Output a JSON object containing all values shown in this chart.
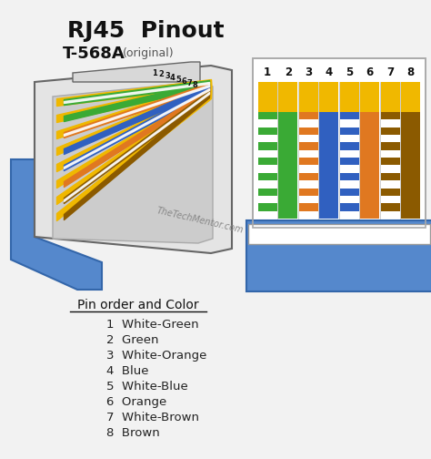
{
  "title": "RJ45  Pinout",
  "subtitle": "T-568A",
  "subtitle2": "(original)",
  "watermark": "TheTechMentor.com",
  "background_color": "#f2f2f2",
  "pin_labels": [
    "1",
    "2",
    "3",
    "4",
    "5",
    "6",
    "7",
    "8"
  ],
  "pin_colors": [
    {
      "name": "White-Green",
      "stripe": true,
      "color": "#3aaa35"
    },
    {
      "name": "Green",
      "stripe": false,
      "color": "#3aaa35"
    },
    {
      "name": "White-Orange",
      "stripe": true,
      "color": "#e07820"
    },
    {
      "name": "Blue",
      "stripe": false,
      "color": "#3060c0"
    },
    {
      "name": "White-Blue",
      "stripe": true,
      "color": "#3060c0"
    },
    {
      "name": "Orange",
      "stripe": false,
      "color": "#e07820"
    },
    {
      "name": "White-Brown",
      "stripe": true,
      "color": "#8b5a00"
    },
    {
      "name": "Brown",
      "stripe": false,
      "color": "#8b5a00"
    }
  ],
  "cable_blue": "#5588cc",
  "connector_gray": "#e0e0e0",
  "connector_outline": "#666666",
  "wire_yellow": "#f0b800",
  "legend_title": "Pin order and Color",
  "legend_items": [
    "1  White-Green",
    "2  Green",
    "3  White-Orange",
    "4  Blue",
    "5  White-Blue",
    "6  Orange",
    "7  White-Brown",
    "8  Brown"
  ]
}
